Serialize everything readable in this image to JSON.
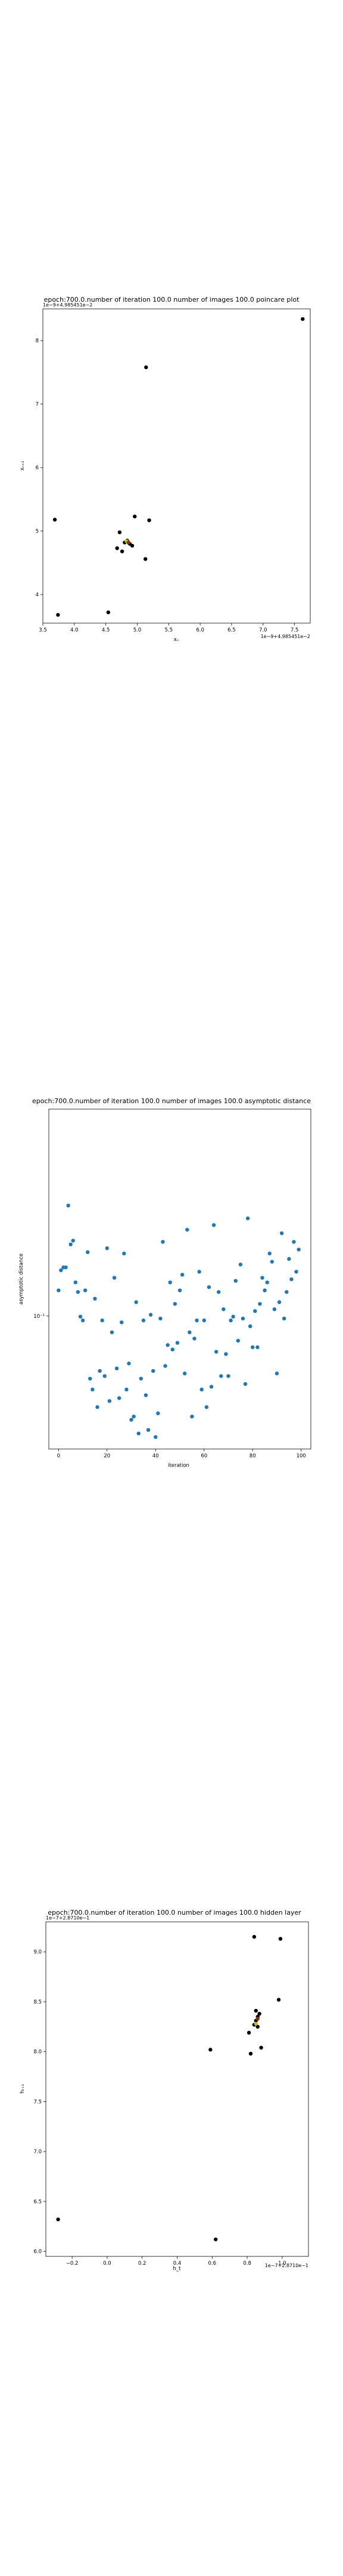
{
  "chart_data": [
    {
      "type": "scatter",
      "title": "epoch:700.0.number of iteration 100.0 number of images 100.0 poincare plot",
      "xlabel": "xₙ",
      "ylabel": "xₙ₊₁",
      "x_offset_text": "1e−9+4.985451e−2",
      "y_offset_text": "1e−9+4.985451e−2",
      "xlim": [
        3.5,
        7.75
      ],
      "ylim": [
        3.55,
        8.5
      ],
      "xticks": [
        "3.5",
        "4.0",
        "4.5",
        "5.0",
        "5.5",
        "6.0",
        "6.5",
        "7.0",
        "7.5"
      ],
      "yticks": [
        "4",
        "5",
        "6",
        "7",
        "8"
      ],
      "grid": false,
      "colors": {
        "primary": "#000000",
        "overlap": "#bcbd22",
        "overlap2": "#8c2d0f"
      },
      "points": [
        {
          "x": 3.69,
          "y": 5.18
        },
        {
          "x": 3.74,
          "y": 3.68
        },
        {
          "x": 4.54,
          "y": 3.72
        },
        {
          "x": 4.68,
          "y": 4.73
        },
        {
          "x": 4.72,
          "y": 4.98
        },
        {
          "x": 4.76,
          "y": 4.68
        },
        {
          "x": 4.8,
          "y": 4.82
        },
        {
          "x": 4.84,
          "y": 4.85
        },
        {
          "x": 4.88,
          "y": 4.8
        },
        {
          "x": 4.92,
          "y": 4.77
        },
        {
          "x": 4.96,
          "y": 5.23
        },
        {
          "x": 5.13,
          "y": 4.56
        },
        {
          "x": 5.19,
          "y": 5.17
        },
        {
          "x": 5.14,
          "y": 7.58
        },
        {
          "x": 7.63,
          "y": 8.34
        }
      ],
      "highlight_points": [
        {
          "x": 4.83,
          "y": 4.84,
          "color": "overlap"
        },
        {
          "x": 4.86,
          "y": 4.82,
          "color": "overlap2"
        }
      ]
    },
    {
      "type": "scatter",
      "title": "epoch:700.0.number of iteration 100.0  number of images 100.0 asymptotic distance",
      "xlabel": "iteration",
      "ylabel": "asymptotic distance",
      "ylog": true,
      "xlim": [
        -4,
        104
      ],
      "xticks": [
        "0",
        "20",
        "40",
        "60",
        "80",
        "100"
      ],
      "ytick_major": "10⁻¹",
      "grid": false,
      "colors": {
        "marker": "#1f77b4"
      },
      "y": [
        0.113,
        0.126,
        0.128,
        0.128,
        0.179,
        0.145,
        0.148,
        0.118,
        0.112,
        0.098,
        0.096,
        0.113,
        0.139,
        0.07,
        0.066,
        0.108,
        0.06,
        0.073,
        0.096,
        0.071,
        0.142,
        0.062,
        0.09,
        0.121,
        0.074,
        0.063,
        0.095,
        0.138,
        0.066,
        0.076,
        0.056,
        0.057,
        0.106,
        0.052,
        0.07,
        0.096,
        0.064,
        0.053,
        0.099,
        0.073,
        0.051,
        0.058,
        0.097,
        0.147,
        0.075,
        0.084,
        0.118,
        0.082,
        0.105,
        0.085,
        0.113,
        0.123,
        0.072,
        0.157,
        0.09,
        0.057,
        0.087,
        0.096,
        0.125,
        0.066,
        0.096,
        0.06,
        0.115,
        0.067,
        0.161,
        0.081,
        0.112,
        0.071,
        0.102,
        0.08,
        0.071,
        0.096,
        0.098,
        0.119,
        0.086,
        0.13,
        0.097,
        0.068,
        0.167,
        0.093,
        0.083,
        0.101,
        0.083,
        0.105,
        0.121,
        0.113,
        0.118,
        0.138,
        0.132,
        0.102,
        0.072,
        0.106,
        0.154,
        0.097,
        0.112,
        0.134,
        0.12,
        0.147,
        0.125,
        0.141
      ]
    },
    {
      "type": "scatter",
      "title": "epoch:700.0.number of iteration 100.0  number of images 100.0 hidden layer",
      "xlabel": "h_t",
      "ylabel": "hₜ₊₁",
      "x_offset_text": "1e−7+2.8710e−1",
      "y_offset_text": "1e−7+2.8710e−1",
      "xlim": [
        -0.35,
        1.15
      ],
      "ylim": [
        5.95,
        9.3
      ],
      "xticks": [
        "−0.2",
        "0.0",
        "0.2",
        "0.4",
        "0.6",
        "0.8",
        "1.0"
      ],
      "yticks": [
        "6.0",
        "6.5",
        "7.0",
        "7.5",
        "8.0",
        "8.5",
        "9.0"
      ],
      "grid": false,
      "colors": {
        "primary": "#000000",
        "overlap": "#bcbd22",
        "overlap2": "#8c2d0f"
      },
      "points": [
        {
          "x": -0.28,
          "y": 6.32
        },
        {
          "x": 0.62,
          "y": 6.12
        },
        {
          "x": 0.59,
          "y": 8.02
        },
        {
          "x": 0.82,
          "y": 7.98
        },
        {
          "x": 0.84,
          "y": 8.27
        },
        {
          "x": 0.85,
          "y": 8.31
        },
        {
          "x": 0.86,
          "y": 8.25
        },
        {
          "x": 0.87,
          "y": 8.38
        },
        {
          "x": 0.86,
          "y": 8.35
        },
        {
          "x": 0.88,
          "y": 8.04
        },
        {
          "x": 0.81,
          "y": 8.19
        },
        {
          "x": 0.84,
          "y": 9.15
        },
        {
          "x": 0.99,
          "y": 9.13
        },
        {
          "x": 0.98,
          "y": 8.52
        },
        {
          "x": 0.85,
          "y": 8.41
        }
      ],
      "highlight_points": [
        {
          "x": 0.85,
          "y": 8.28,
          "color": "overlap"
        },
        {
          "x": 0.86,
          "y": 8.33,
          "color": "overlap2"
        }
      ]
    }
  ]
}
